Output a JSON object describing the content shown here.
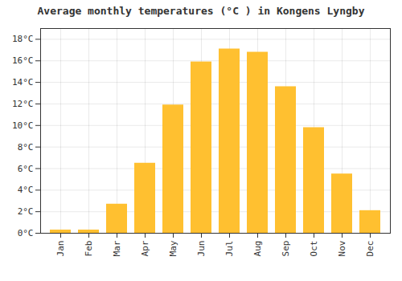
{
  "chart_data": {
    "type": "bar",
    "title": "Average monthly temperatures (°C ) in Kongens Lyngby",
    "categories": [
      "Jan",
      "Feb",
      "Mar",
      "Apr",
      "May",
      "Jun",
      "Jul",
      "Aug",
      "Sep",
      "Oct",
      "Nov",
      "Dec"
    ],
    "values": [
      0.3,
      0.3,
      2.7,
      6.5,
      11.9,
      15.9,
      17.1,
      16.8,
      13.6,
      9.8,
      5.5,
      2.1
    ],
    "color": "#FFC030",
    "ylim": [
      0,
      19
    ],
    "yticks": [
      {
        "value": 0,
        "label": "0°C"
      },
      {
        "value": 2,
        "label": "2°C"
      },
      {
        "value": 4,
        "label": "4°C"
      },
      {
        "value": 6,
        "label": "6°C"
      },
      {
        "value": 8,
        "label": "8°C"
      },
      {
        "value": 10,
        "label": "10°C"
      },
      {
        "value": 12,
        "label": "12°C"
      },
      {
        "value": 14,
        "label": "14°C"
      },
      {
        "value": 16,
        "label": "16°C"
      },
      {
        "value": 18,
        "label": "18°C"
      }
    ],
    "grid": true
  }
}
